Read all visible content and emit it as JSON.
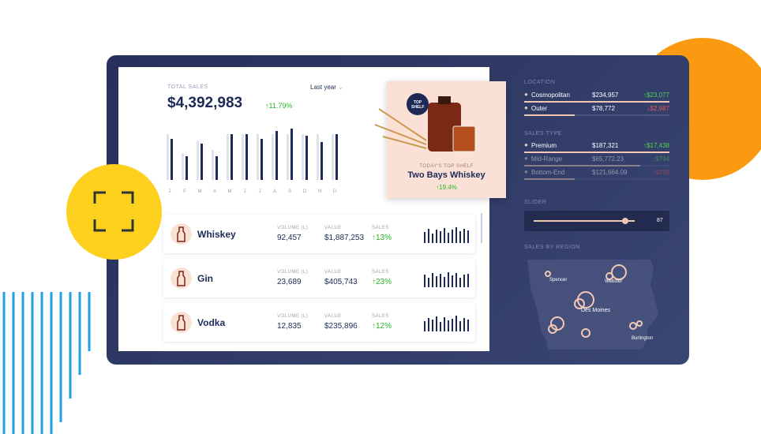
{
  "sales": {
    "label": "TOTAL SALES",
    "period": "Last year",
    "total": "$4,392,983",
    "change": "↑11.79%",
    "chart": {
      "type": "bar",
      "categories": [
        "J",
        "F",
        "M",
        "A",
        "M",
        "J",
        "J",
        "A",
        "S",
        "O",
        "N",
        "D"
      ],
      "series": [
        {
          "color": "#dfe2ea",
          "values": [
            58,
            34,
            50,
            38,
            58,
            58,
            58,
            58,
            58,
            58,
            58,
            58
          ]
        },
        {
          "color": "#1c2a55",
          "values": [
            52,
            30,
            46,
            30,
            58,
            58,
            52,
            62,
            65,
            56,
            48,
            58
          ]
        }
      ]
    }
  },
  "top_shelf": {
    "badge": "TOP SHELF",
    "label": "TODAY'S TOP SHELF",
    "name": "Two Bays Whiskey",
    "change": "↑19.4%"
  },
  "products": [
    {
      "name": "Whiskey",
      "volume_label": "VOLUME (L)",
      "volume": "92,457",
      "value_label": "VALUE",
      "value": "$1,887,253",
      "sales_label": "SALES",
      "sales": "↑13%",
      "spark": [
        14,
        18,
        12,
        17,
        15,
        19,
        13,
        17,
        20,
        15,
        18,
        16
      ]
    },
    {
      "name": "Gin",
      "volume_label": "VOLUME (L)",
      "volume": "23,689",
      "value_label": "VALUE",
      "value": "$405,743",
      "sales_label": "SALES",
      "sales": "↑23%",
      "spark": [
        16,
        12,
        18,
        14,
        17,
        13,
        19,
        15,
        18,
        12,
        16,
        17
      ]
    },
    {
      "name": "Vodka",
      "volume_label": "VOLUME (L)",
      "volume": "12,835",
      "value_label": "VALUE",
      "value": "$235,896",
      "sales_label": "SALES",
      "sales": "↑12%",
      "spark": [
        13,
        17,
        15,
        19,
        12,
        18,
        14,
        16,
        20,
        13,
        17,
        15
      ]
    }
  ],
  "location": {
    "title": "LOCATION",
    "rows": [
      {
        "name": "Cosmopolitan",
        "value": "$234,957",
        "change": "↑$23,077"
      },
      {
        "name": "Outer",
        "value": "$78,772",
        "change": "↓$2,987"
      }
    ]
  },
  "sales_type": {
    "title": "SALES TYPE",
    "rows": [
      {
        "name": "Premium",
        "value": "$187,321",
        "change": "↑$17,438"
      },
      {
        "name": "Mid-Range",
        "value": "$65,772.23",
        "change": "↑$794"
      },
      {
        "name": "Bottom-End",
        "value": "$121,664.09",
        "change": "↓$238"
      }
    ]
  },
  "slider": {
    "title": "SLIDER",
    "value": 87
  },
  "region": {
    "title": "SALES BY REGION",
    "cities": [
      "Spencer",
      "Webster",
      "Des Moines",
      "Burlington"
    ]
  }
}
